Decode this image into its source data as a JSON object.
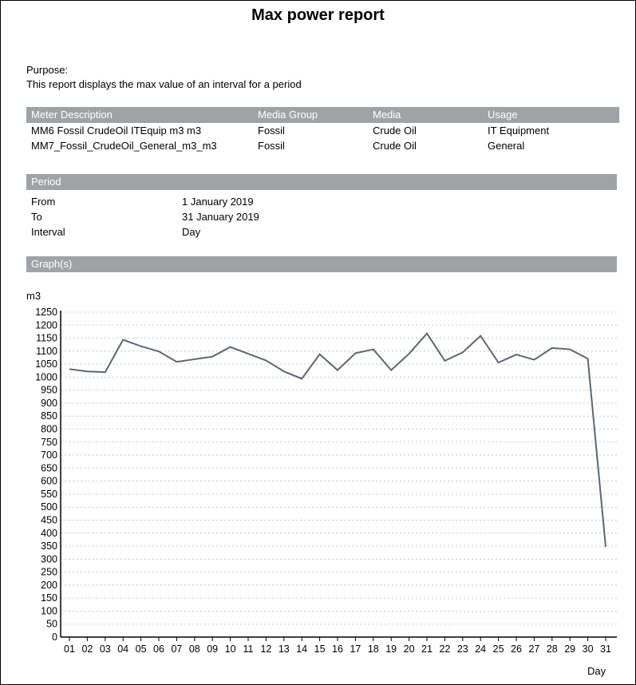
{
  "title": "Max power report",
  "purpose": {
    "label": "Purpose:",
    "text": "This report displays the max value of an interval for a period"
  },
  "meters": {
    "headers": [
      "Meter Description",
      "Media Group",
      "Media",
      "Usage"
    ],
    "rows": [
      [
        "MM6 Fossil CrudeOil ITEquip m3 m3",
        "Fossil",
        "Crude Oil",
        "IT Equipment"
      ],
      [
        "MM7_Fossil_CrudeOil_General_m3_m3",
        "Fossil",
        "Crude Oil",
        "General"
      ]
    ]
  },
  "period": {
    "header": "Period",
    "rows": [
      [
        "From",
        "1 January 2019"
      ],
      [
        "To",
        "31 January 2019"
      ],
      [
        "Interval",
        "Day"
      ]
    ]
  },
  "graphs": {
    "header": "Graph(s)"
  },
  "chart_data": {
    "type": "line",
    "xlabel": "Day",
    "ylabel": "m3",
    "ylim": [
      0,
      1250
    ],
    "ystep": 50,
    "grid": "horizontal dotted",
    "color": "#5f666d",
    "categories": [
      "01",
      "02",
      "03",
      "04",
      "05",
      "06",
      "07",
      "08",
      "09",
      "10",
      "11",
      "12",
      "13",
      "14",
      "15",
      "16",
      "17",
      "18",
      "19",
      "20",
      "21",
      "22",
      "23",
      "24",
      "25",
      "26",
      "27",
      "28",
      "29",
      "30",
      "31"
    ],
    "values": [
      1031,
      1022,
      1019,
      1144,
      1119,
      1099,
      1059,
      1069,
      1079,
      1116,
      1090,
      1064,
      1022,
      994,
      1088,
      1027,
      1092,
      1107,
      1027,
      1090,
      1168,
      1063,
      1095,
      1159,
      1056,
      1087,
      1067,
      1112,
      1107,
      1071,
      347
    ]
  }
}
